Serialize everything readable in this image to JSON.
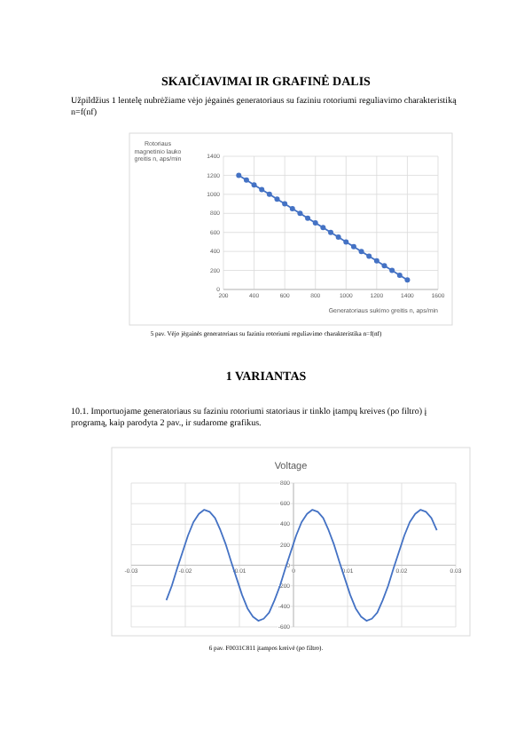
{
  "chart_data": [
    {
      "type": "line",
      "xlabel": "Generatoriaus sukimo greitis n, aps/min",
      "ylabel": "Rotoriaus magnetinio lauko greitis n, aps/min",
      "annotations": [
        "SKAIČIAVIMAI IR GRAFINĖ DALIS",
        "Užpildžius 1 lentelę nubrėžiame vėjo jėgainės generatoriaus su faziniu rotoriumi reguliavimo charakteristiką n=f(nf)",
        "5 pav. Vėjo jėgainės generatoriaus su faziniu rotoriumi reguliavimo charakteristika n=f(nf)"
      ],
      "x": [
        300,
        350,
        400,
        450,
        500,
        550,
        600,
        650,
        700,
        750,
        800,
        850,
        900,
        950,
        1000,
        1050,
        1100,
        1150,
        1200,
        1250,
        1300,
        1350,
        1400
      ],
      "series": [
        {
          "color": "#4472c4",
          "values": [
            1200,
            1150,
            1100,
            1050,
            1000,
            950,
            900,
            850,
            800,
            750,
            700,
            650,
            600,
            550,
            500,
            450,
            400,
            350,
            300,
            250,
            200,
            150,
            100
          ]
        }
      ],
      "xlim": [
        200,
        1600
      ],
      "xticks": [
        200,
        400,
        600,
        800,
        1000,
        1200,
        1400,
        1600
      ],
      "ylim": [
        0,
        1400
      ],
      "yticks": [
        0,
        200,
        400,
        600,
        800,
        1000,
        1200,
        1400
      ],
      "grid": true,
      "marker": "circle",
      "line_style": "solid"
    },
    {
      "type": "line",
      "title": "Voltage",
      "annotations": [
        "1 VARIANTAS",
        "10.1. Importuojame generatoriaus su faziniu rotoriumi statoriaus ir tinklo įtampų kreives (po filtro) į programą, kaip parodyta 2 pav., ir sudarome grafikus.",
        "6 pav. F0031C811 įtampos kreivė (po filtro)."
      ],
      "x": [
        -0.0235,
        -0.0225,
        -0.0215,
        -0.0205,
        -0.0195,
        -0.0185,
        -0.0175,
        -0.0165,
        -0.0155,
        -0.0145,
        -0.0135,
        -0.0125,
        -0.0115,
        -0.0105,
        -0.0095,
        -0.0085,
        -0.0075,
        -0.0065,
        -0.0055,
        -0.0045,
        -0.0035,
        -0.0025,
        -0.0015,
        -0.0005,
        0.0005,
        0.0015,
        0.0025,
        0.0035,
        0.0045,
        0.0055,
        0.0065,
        0.0075,
        0.0085,
        0.0095,
        0.0105,
        0.0115,
        0.0125,
        0.0135,
        0.0145,
        0.0155,
        0.0165,
        0.0175,
        0.0185,
        0.0195,
        0.0205,
        0.0215,
        0.0225,
        0.0235,
        0.0245,
        0.0255,
        0.0265
      ],
      "series": [
        {
          "color": "#4472c4",
          "values": [
            -340,
            -200,
            -30,
            130,
            290,
            420,
            500,
            540,
            520,
            460,
            340,
            200,
            30,
            -130,
            -290,
            -420,
            -500,
            -540,
            -520,
            -460,
            -340,
            -200,
            -30,
            130,
            290,
            420,
            500,
            540,
            520,
            460,
            340,
            200,
            30,
            -130,
            -290,
            -420,
            -500,
            -540,
            -520,
            -460,
            -340,
            -200,
            -30,
            130,
            290,
            420,
            500,
            540,
            520,
            460,
            340
          ]
        }
      ],
      "xlim": [
        -0.03,
        0.03
      ],
      "xticks": [
        -0.03,
        -0.02,
        -0.01,
        0,
        0.01,
        0.02,
        0.03
      ],
      "ylim": [
        -600,
        800
      ],
      "yticks": [
        -600,
        -400,
        -200,
        0,
        200,
        400,
        600,
        800
      ],
      "grid": true,
      "marker": "none",
      "line_style": "solid"
    }
  ]
}
